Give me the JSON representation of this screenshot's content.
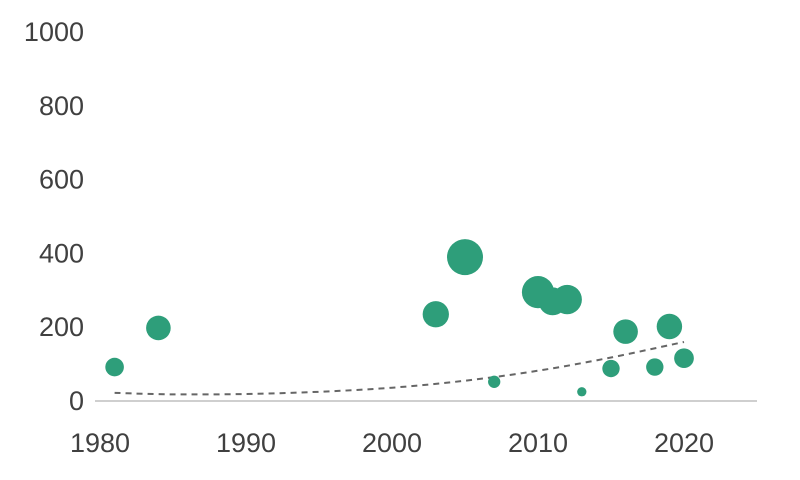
{
  "chart_data": {
    "type": "scatter",
    "subtype": "bubble",
    "title": "",
    "xlabel": "",
    "ylabel": "",
    "xlim": [
      1980,
      2025
    ],
    "ylim": [
      0,
      1000
    ],
    "x_ticks": [
      1980,
      1990,
      2000,
      2010,
      2020
    ],
    "y_ticks": [
      0,
      200,
      400,
      600,
      800,
      1000
    ],
    "x_tick_labels": [
      "1980",
      "1990",
      "2000",
      "2010",
      "2020"
    ],
    "y_tick_labels": [
      "0",
      "200",
      "400",
      "600",
      "800",
      "1000"
    ],
    "grid": false,
    "legend": "none",
    "colors": {
      "bubble": "#2e9e7a",
      "trend": "#666666",
      "axis": "#bfbfbf",
      "text": "#404040"
    },
    "points": [
      {
        "x": 1981,
        "y": 92,
        "size": 16
      },
      {
        "x": 1984,
        "y": 198,
        "size": 28
      },
      {
        "x": 2003,
        "y": 235,
        "size": 32
      },
      {
        "x": 2005,
        "y": 390,
        "size": 60
      },
      {
        "x": 2007,
        "y": 52,
        "size": 7
      },
      {
        "x": 2010,
        "y": 295,
        "size": 48
      },
      {
        "x": 2011,
        "y": 270,
        "size": 36
      },
      {
        "x": 2012,
        "y": 275,
        "size": 40
      },
      {
        "x": 2013,
        "y": 25,
        "size": 4
      },
      {
        "x": 2015,
        "y": 88,
        "size": 14
      },
      {
        "x": 2016,
        "y": 188,
        "size": 28
      },
      {
        "x": 2018,
        "y": 92,
        "size": 14
      },
      {
        "x": 2019,
        "y": 202,
        "size": 30
      },
      {
        "x": 2020,
        "y": 116,
        "size": 18
      }
    ],
    "trendline": {
      "style": "dashed",
      "type": "exponential",
      "x": [
        1981,
        1985,
        1990,
        1995,
        2000,
        2005,
        2010,
        2015,
        2020
      ],
      "y": [
        22,
        18,
        19,
        25,
        36,
        55,
        82,
        118,
        160
      ]
    }
  }
}
